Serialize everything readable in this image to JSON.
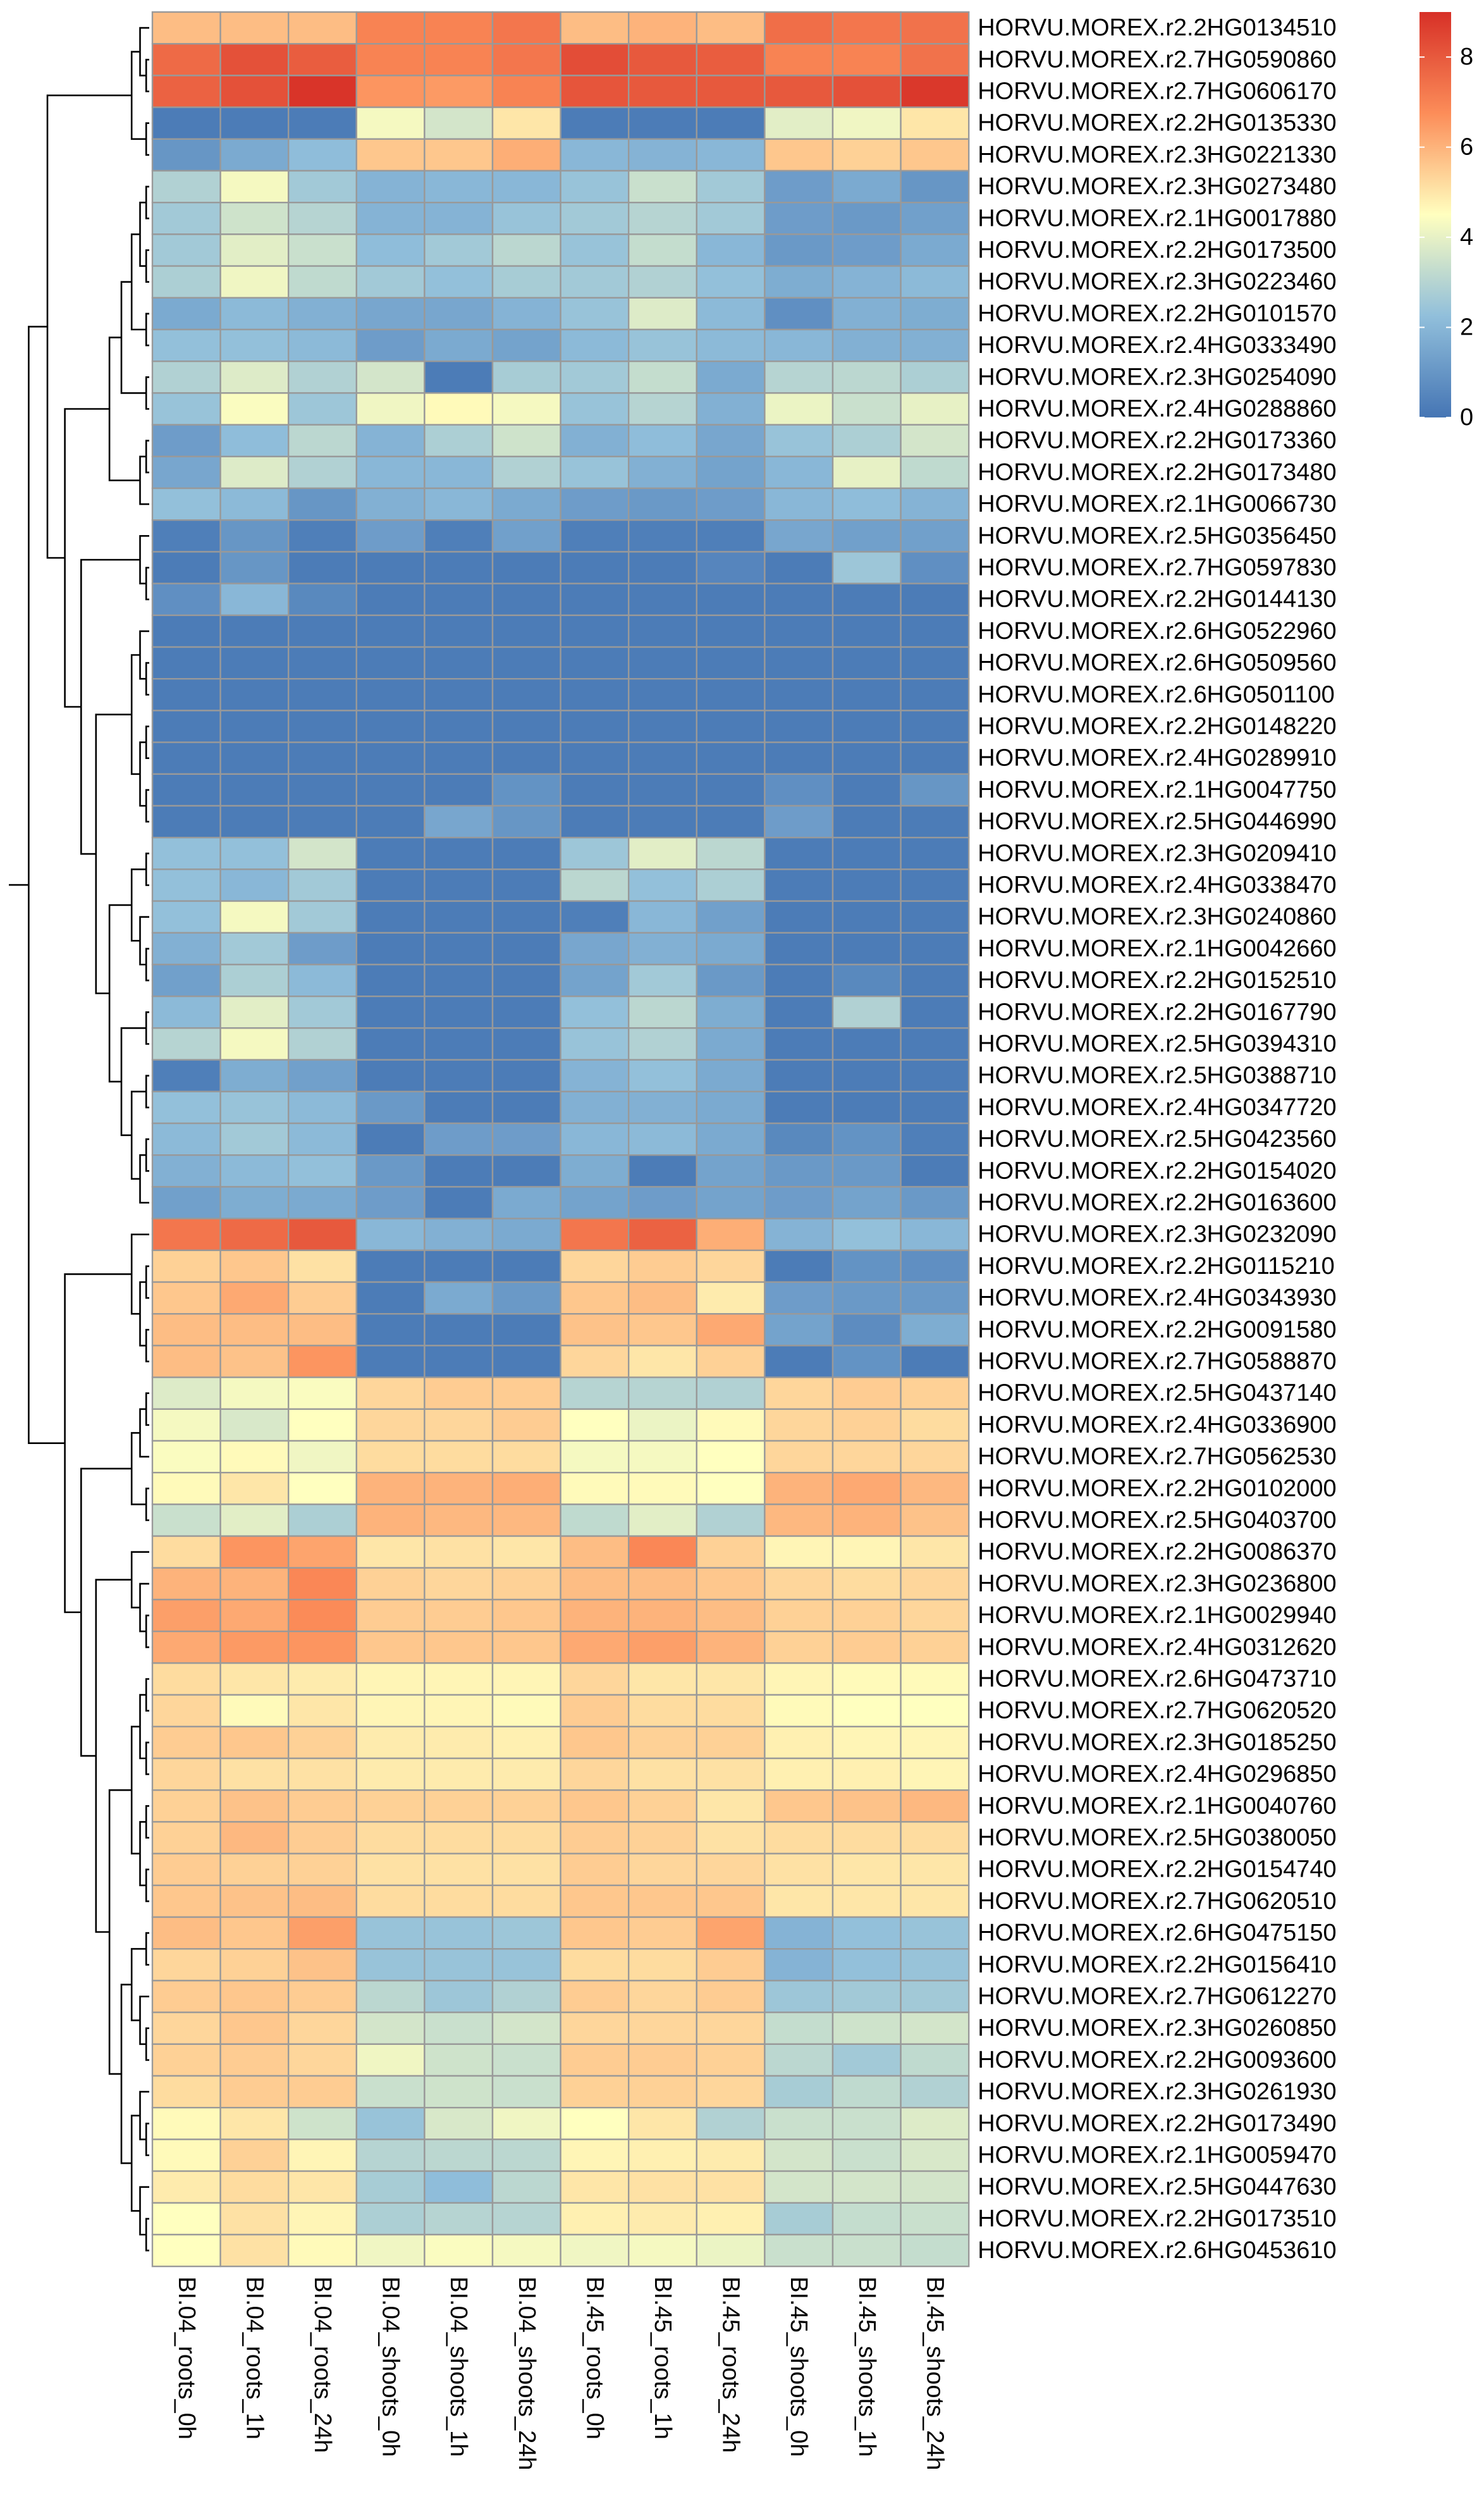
{
  "chart_data": {
    "type": "heatmap",
    "title": "",
    "xlabel": "",
    "ylabel": "",
    "columns": [
      "BI.04_roots_0h",
      "BI.04_roots_1h",
      "BI.04_roots_24h",
      "BI.04_shoots_0h",
      "BI.04_shoots_1h",
      "BI.04_shoots_24h",
      "BI.45_roots_0h",
      "BI.45_roots_1h",
      "BI.45_roots_24h",
      "BI.45_shoots_0h",
      "BI.45_shoots_1h",
      "BI.45_shoots_24h"
    ],
    "rows": [
      "HORVU.MOREX.r2.2HG0134510",
      "HORVU.MOREX.r2.7HG0590860",
      "HORVU.MOREX.r2.7HG0606170",
      "HORVU.MOREX.r2.2HG0135330",
      "HORVU.MOREX.r2.3HG0221330",
      "HORVU.MOREX.r2.3HG0273480",
      "HORVU.MOREX.r2.1HG0017880",
      "HORVU.MOREX.r2.2HG0173500",
      "HORVU.MOREX.r2.3HG0223460",
      "HORVU.MOREX.r2.2HG0101570",
      "HORVU.MOREX.r2.4HG0333490",
      "HORVU.MOREX.r2.3HG0254090",
      "HORVU.MOREX.r2.4HG0288860",
      "HORVU.MOREX.r2.2HG0173360",
      "HORVU.MOREX.r2.2HG0173480",
      "HORVU.MOREX.r2.1HG0066730",
      "HORVU.MOREX.r2.5HG0356450",
      "HORVU.MOREX.r2.7HG0597830",
      "HORVU.MOREX.r2.2HG0144130",
      "HORVU.MOREX.r2.6HG0522960",
      "HORVU.MOREX.r2.6HG0509560",
      "HORVU.MOREX.r2.6HG0501100",
      "HORVU.MOREX.r2.2HG0148220",
      "HORVU.MOREX.r2.4HG0289910",
      "HORVU.MOREX.r2.1HG0047750",
      "HORVU.MOREX.r2.5HG0446990",
      "HORVU.MOREX.r2.3HG0209410",
      "HORVU.MOREX.r2.4HG0338470",
      "HORVU.MOREX.r2.3HG0240860",
      "HORVU.MOREX.r2.1HG0042660",
      "HORVU.MOREX.r2.2HG0152510",
      "HORVU.MOREX.r2.2HG0167790",
      "HORVU.MOREX.r2.5HG0394310",
      "HORVU.MOREX.r2.5HG0388710",
      "HORVU.MOREX.r2.4HG0347720",
      "HORVU.MOREX.r2.5HG0423560",
      "HORVU.MOREX.r2.2HG0154020",
      "HORVU.MOREX.r2.2HG0163600",
      "HORVU.MOREX.r2.3HG0232090",
      "HORVU.MOREX.r2.2HG0115210",
      "HORVU.MOREX.r2.4HG0343930",
      "HORVU.MOREX.r2.2HG0091580",
      "HORVU.MOREX.r2.7HG0588870",
      "HORVU.MOREX.r2.5HG0437140",
      "HORVU.MOREX.r2.4HG0336900",
      "HORVU.MOREX.r2.7HG0562530",
      "HORVU.MOREX.r2.2HG0102000",
      "HORVU.MOREX.r2.5HG0403700",
      "HORVU.MOREX.r2.2HG0086370",
      "HORVU.MOREX.r2.3HG0236800",
      "HORVU.MOREX.r2.1HG0029940",
      "HORVU.MOREX.r2.4HG0312620",
      "HORVU.MOREX.r2.6HG0473710",
      "HORVU.MOREX.r2.7HG0620520",
      "HORVU.MOREX.r2.3HG0185250",
      "HORVU.MOREX.r2.4HG0296850",
      "HORVU.MOREX.r2.1HG0040760",
      "HORVU.MOREX.r2.5HG0380050",
      "HORVU.MOREX.r2.2HG0154740",
      "HORVU.MOREX.r2.7HG0620510",
      "HORVU.MOREX.r2.6HG0475150",
      "HORVU.MOREX.r2.2HG0156410",
      "HORVU.MOREX.r2.7HG0612270",
      "HORVU.MOREX.r2.3HG0260850",
      "HORVU.MOREX.r2.2HG0093600",
      "HORVU.MOREX.r2.3HG0261930",
      "HORVU.MOREX.r2.2HG0173490",
      "HORVU.MOREX.r2.1HG0059470",
      "HORVU.MOREX.r2.5HG0447630",
      "HORVU.MOREX.r2.2HG0173510",
      "HORVU.MOREX.r2.6HG0453610"
    ],
    "values": [
      [
        5.8,
        5.8,
        5.8,
        7.0,
        7.0,
        7.3,
        5.8,
        6.0,
        5.8,
        7.5,
        7.3,
        7.4
      ],
      [
        7.6,
        8.2,
        7.9,
        7.0,
        7.0,
        7.3,
        8.3,
        8.0,
        7.9,
        7.0,
        7.0,
        7.4
      ],
      [
        7.8,
        8.2,
        8.9,
        6.6,
        6.5,
        7.0,
        8.1,
        8.0,
        8.0,
        8.0,
        8.2,
        8.8
      ],
      [
        0.2,
        0.2,
        0.2,
        4.3,
        3.6,
        5.0,
        0.2,
        0.2,
        0.2,
        3.9,
        4.2,
        5.0
      ],
      [
        1.0,
        1.6,
        2.2,
        5.6,
        5.6,
        6.1,
        2.0,
        1.9,
        2.0,
        5.6,
        5.4,
        5.6
      ],
      [
        2.9,
        4.3,
        2.6,
        1.9,
        2.0,
        2.0,
        2.4,
        3.4,
        2.6,
        1.2,
        1.6,
        1.0
      ],
      [
        2.6,
        3.5,
        3.0,
        1.9,
        1.9,
        2.4,
        2.6,
        3.0,
        2.6,
        1.2,
        1.1,
        1.3
      ],
      [
        2.6,
        3.9,
        3.4,
        2.2,
        2.6,
        3.1,
        2.4,
        3.3,
        2.0,
        1.1,
        1.2,
        1.6
      ],
      [
        2.8,
        4.2,
        3.2,
        2.6,
        2.3,
        2.7,
        2.6,
        2.9,
        2.3,
        1.7,
        1.9,
        2.1
      ],
      [
        1.6,
        2.1,
        1.8,
        1.5,
        1.5,
        1.9,
        2.4,
        3.8,
        2.1,
        0.8,
        1.8,
        1.7
      ],
      [
        2.3,
        2.3,
        2.1,
        1.2,
        1.6,
        1.4,
        2.1,
        2.4,
        2.1,
        2.0,
        1.8,
        1.8
      ],
      [
        2.9,
        3.8,
        2.9,
        3.6,
        0.2,
        2.7,
        2.6,
        3.3,
        1.6,
        3.0,
        3.1,
        2.8
      ],
      [
        2.4,
        4.4,
        2.5,
        4.2,
        4.6,
        4.3,
        2.4,
        3.0,
        1.8,
        4.1,
        3.4,
        4.0
      ],
      [
        1.2,
        2.2,
        3.1,
        1.9,
        2.8,
        3.5,
        1.8,
        2.2,
        1.5,
        2.4,
        2.8,
        3.6
      ],
      [
        1.5,
        3.8,
        2.9,
        2.0,
        2.0,
        2.9,
        2.4,
        1.8,
        1.4,
        2.0,
        4.0,
        3.2
      ],
      [
        2.3,
        2.1,
        1.0,
        1.8,
        2.0,
        1.6,
        1.2,
        1.1,
        1.2,
        2.0,
        2.2,
        1.9
      ],
      [
        0.3,
        1.0,
        0.3,
        1.2,
        0.3,
        1.3,
        0.3,
        0.3,
        0.3,
        1.5,
        1.3,
        1.3
      ],
      [
        0.2,
        1.0,
        0.2,
        0.2,
        0.2,
        0.2,
        0.2,
        0.2,
        0.5,
        0.2,
        2.5,
        0.8
      ],
      [
        0.8,
        2.0,
        0.6,
        0.2,
        0.2,
        0.2,
        0.2,
        0.2,
        0.2,
        0.2,
        0.2,
        0.2
      ],
      [
        0.2,
        0.2,
        0.2,
        0.2,
        0.2,
        0.2,
        0.2,
        0.2,
        0.2,
        0.2,
        0.2,
        0.2
      ],
      [
        0.2,
        0.2,
        0.2,
        0.2,
        0.2,
        0.2,
        0.2,
        0.2,
        0.2,
        0.2,
        0.2,
        0.2
      ],
      [
        0.2,
        0.2,
        0.2,
        0.2,
        0.2,
        0.2,
        0.2,
        0.2,
        0.2,
        0.2,
        0.2,
        0.2
      ],
      [
        0.2,
        0.2,
        0.2,
        0.2,
        0.2,
        0.2,
        0.2,
        0.2,
        0.2,
        0.2,
        0.2,
        0.2
      ],
      [
        0.2,
        0.2,
        0.2,
        0.2,
        0.2,
        0.2,
        0.2,
        0.2,
        0.2,
        0.2,
        0.2,
        0.2
      ],
      [
        0.2,
        0.2,
        0.2,
        0.2,
        0.2,
        0.9,
        0.2,
        0.2,
        0.2,
        0.8,
        0.2,
        1.0
      ],
      [
        0.2,
        0.2,
        0.2,
        0.2,
        1.5,
        1.0,
        0.2,
        0.2,
        0.2,
        1.2,
        0.2,
        0.2
      ],
      [
        2.3,
        2.3,
        3.6,
        0.2,
        0.2,
        0.2,
        2.5,
        3.9,
        3.1,
        0.2,
        0.2,
        0.2
      ],
      [
        2.3,
        2.0,
        2.6,
        0.2,
        0.2,
        0.2,
        3.1,
        2.3,
        2.8,
        0.2,
        0.2,
        0.2
      ],
      [
        2.3,
        4.3,
        2.6,
        0.2,
        0.2,
        0.2,
        0.3,
        2.0,
        1.3,
        0.2,
        0.2,
        0.2
      ],
      [
        1.8,
        2.6,
        1.2,
        0.2,
        0.2,
        0.2,
        1.5,
        1.8,
        1.6,
        0.2,
        0.2,
        0.2
      ],
      [
        1.3,
        2.8,
        2.1,
        0.2,
        0.2,
        0.2,
        1.4,
        2.6,
        1.1,
        0.2,
        0.6,
        0.2
      ],
      [
        2.1,
        3.9,
        2.6,
        0.2,
        0.2,
        0.2,
        2.3,
        3.1,
        1.7,
        0.2,
        2.9,
        0.2
      ],
      [
        3.0,
        4.3,
        2.9,
        0.2,
        0.2,
        0.2,
        2.4,
        2.9,
        1.6,
        0.2,
        0.2,
        0.2
      ],
      [
        0.3,
        1.7,
        1.3,
        0.2,
        0.2,
        0.2,
        1.9,
        2.3,
        1.6,
        0.2,
        0.2,
        0.2
      ],
      [
        2.3,
        2.4,
        2.1,
        1.1,
        0.2,
        0.2,
        1.8,
        1.8,
        1.6,
        0.2,
        0.2,
        0.2
      ],
      [
        2.1,
        2.6,
        2.1,
        0.2,
        1.2,
        1.2,
        2.0,
        2.1,
        1.6,
        0.6,
        0.9,
        0.3
      ],
      [
        1.8,
        2.1,
        2.3,
        1.1,
        0.2,
        0.2,
        1.7,
        0.2,
        1.4,
        1.1,
        1.1,
        0.2
      ],
      [
        1.3,
        1.7,
        1.6,
        1.2,
        0.2,
        1.6,
        1.4,
        1.2,
        1.4,
        1.2,
        1.4,
        1.1
      ],
      [
        7.3,
        7.6,
        8.0,
        2.0,
        1.8,
        1.6,
        7.3,
        7.8,
        6.1,
        1.9,
        2.3,
        2.0
      ],
      [
        5.4,
        5.6,
        5.1,
        0.2,
        0.2,
        0.2,
        5.3,
        5.5,
        5.3,
        0.2,
        0.9,
        0.8
      ],
      [
        5.6,
        6.2,
        5.5,
        0.2,
        1.6,
        1.1,
        5.6,
        5.8,
        4.9,
        1.2,
        1.1,
        1.1
      ],
      [
        5.8,
        5.8,
        5.8,
        0.2,
        0.2,
        0.2,
        5.7,
        5.6,
        6.2,
        1.4,
        0.7,
        1.7
      ],
      [
        5.8,
        5.7,
        6.6,
        0.2,
        0.2,
        0.2,
        5.3,
        5.0,
        5.4,
        0.2,
        0.9,
        0.2
      ],
      [
        3.8,
        4.3,
        4.4,
        5.3,
        5.5,
        5.5,
        3.0,
        3.0,
        2.9,
        5.3,
        5.5,
        5.4
      ],
      [
        4.3,
        3.7,
        4.5,
        5.3,
        5.3,
        5.5,
        4.5,
        4.1,
        4.6,
        5.3,
        5.4,
        5.2
      ],
      [
        4.4,
        4.6,
        4.2,
        5.2,
        5.2,
        5.2,
        4.3,
        4.3,
        4.5,
        5.3,
        5.3,
        5.3
      ],
      [
        4.6,
        5.0,
        4.5,
        6.0,
        6.0,
        6.1,
        4.6,
        4.6,
        4.5,
        6.0,
        6.2,
        5.9
      ],
      [
        3.4,
        3.9,
        2.8,
        6.0,
        5.9,
        5.9,
        3.2,
        3.9,
        2.9,
        5.9,
        6.0,
        5.7
      ],
      [
        5.2,
        6.6,
        6.3,
        5.0,
        5.1,
        5.0,
        5.8,
        6.9,
        5.4,
        4.7,
        4.7,
        5.0
      ],
      [
        6.0,
        6.0,
        6.9,
        5.4,
        5.3,
        5.4,
        5.8,
        5.8,
        5.6,
        5.3,
        5.2,
        5.3
      ],
      [
        6.4,
        6.2,
        6.8,
        5.5,
        5.5,
        5.6,
        6.0,
        6.0,
        5.8,
        5.4,
        5.4,
        5.3
      ],
      [
        6.2,
        6.5,
        6.6,
        5.6,
        5.6,
        5.6,
        6.2,
        6.4,
        6.0,
        5.4,
        5.5,
        5.4
      ],
      [
        5.2,
        5.0,
        4.9,
        4.7,
        4.7,
        4.7,
        5.3,
        5.0,
        5.0,
        4.7,
        4.6,
        4.6
      ],
      [
        5.3,
        4.6,
        5.0,
        4.7,
        4.7,
        4.6,
        5.5,
        5.2,
        5.2,
        4.6,
        4.5,
        4.5
      ],
      [
        5.5,
        5.6,
        5.4,
        4.9,
        4.9,
        4.8,
        5.6,
        5.4,
        5.4,
        4.8,
        4.7,
        4.7
      ],
      [
        5.3,
        5.1,
        5.1,
        4.9,
        4.9,
        4.9,
        5.3,
        5.1,
        5.1,
        4.8,
        4.8,
        4.7
      ],
      [
        5.4,
        5.7,
        5.5,
        5.4,
        5.4,
        5.4,
        5.6,
        5.4,
        5.0,
        5.6,
        5.7,
        5.9
      ],
      [
        5.4,
        5.9,
        5.5,
        5.2,
        5.2,
        5.2,
        5.5,
        5.4,
        5.1,
        5.2,
        5.2,
        5.2
      ],
      [
        5.5,
        5.4,
        5.4,
        5.1,
        5.1,
        5.1,
        5.5,
        5.3,
        5.3,
        5.1,
        5.0,
        5.0
      ],
      [
        5.6,
        5.7,
        5.8,
        5.2,
        5.2,
        5.2,
        5.6,
        5.6,
        5.6,
        5.0,
        5.0,
        5.0
      ],
      [
        5.8,
        5.6,
        6.4,
        2.4,
        2.4,
        2.5,
        5.6,
        5.5,
        6.3,
        1.9,
        2.3,
        2.4
      ],
      [
        5.3,
        5.4,
        5.7,
        2.4,
        2.4,
        2.4,
        5.2,
        5.2,
        5.5,
        1.9,
        2.3,
        2.4
      ],
      [
        5.5,
        5.6,
        5.5,
        3.1,
        2.5,
        2.9,
        5.5,
        5.3,
        5.5,
        2.5,
        2.6,
        2.6
      ],
      [
        5.3,
        5.6,
        5.3,
        3.6,
        3.4,
        3.6,
        5.3,
        5.3,
        5.3,
        3.3,
        3.5,
        3.6
      ],
      [
        5.4,
        5.5,
        5.3,
        4.2,
        3.5,
        3.4,
        5.5,
        5.5,
        5.4,
        3.1,
        2.6,
        3.2
      ],
      [
        5.2,
        5.5,
        5.5,
        3.4,
        3.5,
        3.4,
        5.4,
        5.4,
        5.3,
        2.7,
        3.2,
        2.9
      ],
      [
        4.6,
        5.0,
        3.5,
        2.4,
        3.7,
        4.2,
        4.5,
        5.0,
        2.9,
        3.4,
        3.4,
        3.8
      ],
      [
        4.6,
        5.4,
        4.7,
        3.0,
        3.1,
        3.1,
        4.7,
        4.8,
        4.9,
        3.6,
        3.4,
        3.7
      ],
      [
        4.9,
        5.2,
        5.0,
        2.7,
        2.2,
        3.1,
        5.0,
        5.1,
        5.1,
        3.6,
        3.6,
        3.6
      ],
      [
        4.5,
        5.1,
        4.7,
        2.8,
        3.0,
        3.0,
        4.8,
        4.9,
        4.8,
        2.7,
        3.3,
        3.4
      ],
      [
        4.5,
        5.1,
        4.6,
        4.2,
        4.4,
        4.3,
        4.2,
        4.3,
        4.1,
        3.4,
        3.4,
        3.3
      ]
    ],
    "colorbar": {
      "min": 0,
      "max": 9,
      "ticks": [
        0,
        2,
        4,
        6,
        8
      ]
    },
    "colors": {
      "low": "#4575b4",
      "lowmid": "#91bfdb",
      "mid": "#ffffbf",
      "highmid": "#fc8d59",
      "high": "#d73027",
      "cell_border": "#999999"
    },
    "row_dendrogram": true,
    "legend_position": "top-right"
  }
}
